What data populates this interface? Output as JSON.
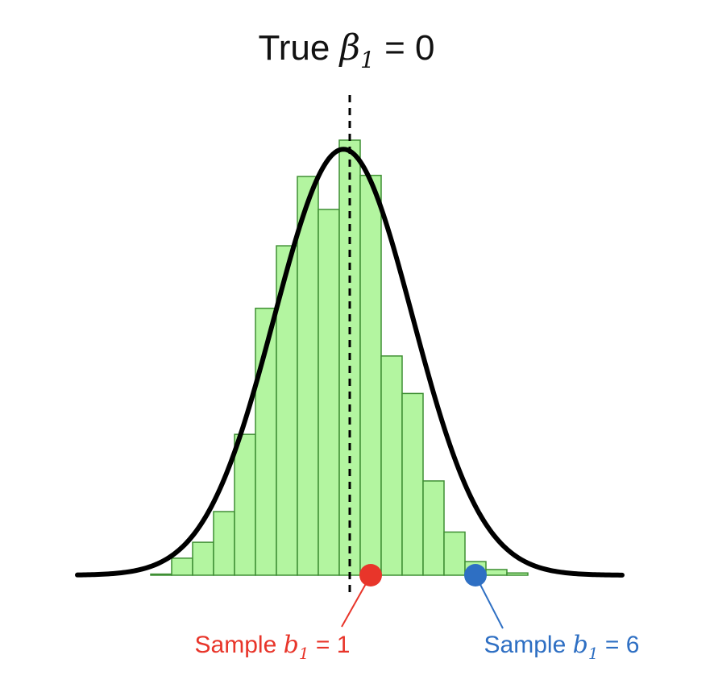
{
  "chart_data": {
    "type": "bar",
    "title": {
      "prefix": "True ",
      "symbol": "β",
      "subscript": "1",
      "suffix": " = 0"
    },
    "xlabel": "",
    "ylabel": "",
    "grid": false,
    "legend": "none",
    "bin_width": 1,
    "bins": [
      {
        "x": -9,
        "value": 0.01
      },
      {
        "x": -8,
        "value": 0.15
      },
      {
        "x": -7,
        "value": 0.29
      },
      {
        "x": -6,
        "value": 0.56
      },
      {
        "x": -5,
        "value": 1.24
      },
      {
        "x": -4,
        "value": 2.35
      },
      {
        "x": -3,
        "value": 2.9
      },
      {
        "x": -2,
        "value": 3.51
      },
      {
        "x": -1,
        "value": 3.22
      },
      {
        "x": 0,
        "value": 3.83
      },
      {
        "x": 1,
        "value": 3.52
      },
      {
        "x": 2,
        "value": 1.93
      },
      {
        "x": 3,
        "value": 1.6
      },
      {
        "x": 4,
        "value": 0.83
      },
      {
        "x": 5,
        "value": 0.38
      },
      {
        "x": 6,
        "value": 0.12
      },
      {
        "x": 7,
        "value": 0.05
      },
      {
        "x": 8,
        "value": 0.02
      }
    ],
    "curve": {
      "type": "normal",
      "mean": -0.3,
      "sd": 3.3,
      "peak": 3.75
    },
    "true_value_line": {
      "x": 0,
      "style": "dashed"
    },
    "xlim": [
      -13,
      13
    ],
    "ylim": [
      0,
      4
    ],
    "points": [
      {
        "name": "sample-1",
        "x": 1,
        "prefix": "Sample ",
        "symbol": "b",
        "subscript": "1",
        "suffix": " = 1",
        "color": "#e8352a"
      },
      {
        "name": "sample-6",
        "x": 6,
        "prefix": "Sample ",
        "symbol": "b",
        "subscript": "1",
        "suffix": " = 6",
        "color": "#2e6fc3"
      }
    ],
    "colors": {
      "bar_fill": "#b3f5a0",
      "bar_stroke": "#3f8f34",
      "curve": "#000000",
      "true_line": "#000000"
    }
  }
}
